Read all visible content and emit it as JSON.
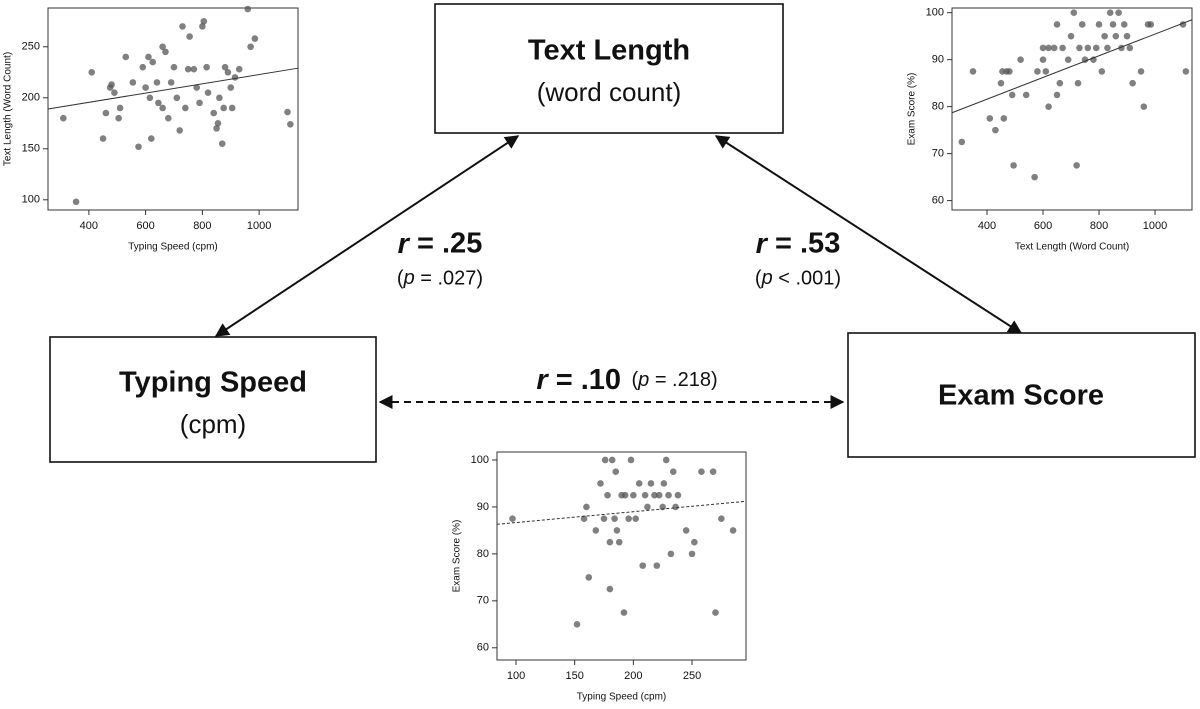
{
  "nodes": [
    {
      "title": "Text Length",
      "subtitle": "(word count)"
    },
    {
      "title": "Typing Speed",
      "subtitle": "(cpm)"
    },
    {
      "title": "Exam Score"
    }
  ],
  "edges": [
    {
      "from": "Text Length",
      "to": "Typing Speed",
      "r": "r = .25",
      "p": "(p = .027)",
      "style": "solid"
    },
    {
      "from": "Text Length",
      "to": "Exam Score",
      "r": "r = .53",
      "p": "(p < .001)",
      "style": "solid"
    },
    {
      "from": "Typing Speed",
      "to": "Exam Score",
      "r": "r = .10",
      "p": "(p = .218)",
      "style": "dashed"
    }
  ],
  "chart_data": [
    {
      "type": "scatter",
      "x_label": "Typing Speed (cpm)",
      "y_label": "Text Length (Word Count)",
      "color": "#555555",
      "xlim": [
        256,
        1137
      ],
      "ylim": [
        90,
        288
      ],
      "xticks": [
        400,
        600,
        800,
        1000
      ],
      "yticks": [
        100,
        150,
        200,
        250
      ],
      "x": [
        310,
        355,
        410,
        450,
        460,
        475,
        480,
        490,
        505,
        510,
        530,
        555,
        575,
        590,
        600,
        610,
        615,
        620,
        625,
        640,
        645,
        660,
        660,
        670,
        680,
        690,
        700,
        710,
        720,
        730,
        740,
        750,
        755,
        770,
        780,
        790,
        800,
        805,
        815,
        820,
        840,
        850,
        855,
        860,
        870,
        875,
        880,
        890,
        900,
        905,
        915,
        930,
        960,
        970,
        985,
        1100,
        1110
      ],
      "values": [
        180,
        98,
        225,
        160,
        185,
        210,
        213,
        205,
        180,
        190,
        240,
        215,
        152,
        230,
        210,
        240,
        200,
        160,
        235,
        215,
        195,
        250,
        190,
        245,
        180,
        215,
        230,
        200,
        168,
        270,
        190,
        228,
        260,
        228,
        210,
        195,
        270,
        275,
        230,
        205,
        185,
        170,
        175,
        200,
        155,
        190,
        230,
        225,
        210,
        190,
        220,
        228,
        287,
        250,
        258,
        186,
        174
      ],
      "trend": {
        "x": [
          256,
          1137
        ],
        "values": [
          189,
          229
        ],
        "style": "solid"
      }
    },
    {
      "type": "scatter",
      "x_label": "Text Length (Word Count)",
      "y_label": "Exam Score (%)",
      "color": "#555555",
      "xlim": [
        275,
        1132
      ],
      "ylim": [
        58,
        101
      ],
      "xticks": [
        400,
        600,
        800,
        1000
      ],
      "yticks": [
        60,
        70,
        80,
        90,
        100
      ],
      "x": [
        310,
        350,
        410,
        430,
        450,
        455,
        460,
        470,
        480,
        490,
        495,
        520,
        540,
        570,
        580,
        600,
        600,
        610,
        620,
        620,
        640,
        650,
        650,
        660,
        670,
        690,
        700,
        710,
        720,
        725,
        730,
        740,
        750,
        760,
        780,
        790,
        800,
        810,
        820,
        830,
        840,
        850,
        860,
        870,
        880,
        890,
        900,
        910,
        920,
        950,
        960,
        975,
        985,
        1100,
        1110
      ],
      "values": [
        72.5,
        87.5,
        77.5,
        75,
        85,
        87.5,
        77.5,
        87.5,
        87.5,
        82.5,
        67.5,
        90,
        82.5,
        65,
        87.5,
        90,
        92.5,
        87.5,
        80,
        92.5,
        92.5,
        82.5,
        97.5,
        85,
        92.5,
        90,
        95,
        100,
        67.5,
        85,
        92.5,
        97.5,
        90,
        92.5,
        90,
        92.5,
        97.5,
        87.5,
        95,
        92.5,
        100,
        97.5,
        95,
        100,
        92.5,
        97.5,
        95,
        92.5,
        85,
        87.5,
        80,
        97.5,
        97.5,
        97.5,
        87.5
      ],
      "trend": {
        "x": [
          275,
          1132
        ],
        "values": [
          78.7,
          98.5
        ],
        "style": "solid"
      }
    },
    {
      "type": "scatter",
      "x_label": "Typing Speed (cpm)",
      "y_label": "Exam Score (%)",
      "color": "#555555",
      "xlim": [
        83.8,
        296
      ],
      "ylim": [
        57.4,
        101.7
      ],
      "xticks": [
        100,
        150,
        200,
        250
      ],
      "yticks": [
        60,
        70,
        80,
        90,
        100
      ],
      "x": [
        97,
        152,
        158,
        160,
        162,
        168,
        172,
        175,
        176,
        178,
        180,
        180,
        182,
        184,
        185,
        186,
        188,
        190,
        192,
        193,
        196,
        198,
        200,
        202,
        205,
        208,
        210,
        212,
        215,
        218,
        220,
        222,
        225,
        226,
        228,
        230,
        232,
        234,
        236,
        238,
        245,
        250,
        252,
        258,
        268,
        270,
        275,
        285
      ],
      "values": [
        87.5,
        65,
        87.5,
        90,
        75,
        85,
        95,
        87.5,
        100,
        92.5,
        82.5,
        72.5,
        100,
        87.5,
        97.5,
        85,
        82.5,
        92.5,
        67.5,
        92.5,
        87.5,
        100,
        92.5,
        87.5,
        95,
        77.5,
        92.5,
        90,
        95,
        92.5,
        77.5,
        92.5,
        90,
        95,
        100,
        92.5,
        80,
        97.5,
        90,
        92.5,
        85,
        80,
        82.5,
        97.5,
        97.5,
        67.5,
        87.5,
        85
      ],
      "trend": {
        "x": [
          83.8,
          296
        ],
        "values": [
          86.3,
          91.2
        ],
        "style": "dashed"
      }
    }
  ]
}
